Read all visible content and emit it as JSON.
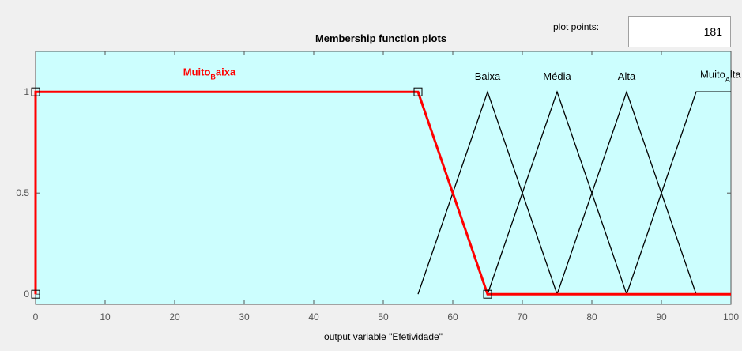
{
  "plot_points": {
    "label": "plot points:",
    "value": "181"
  },
  "colors": {
    "plot_background": "#ccfefe",
    "window_background": "#f0f0f0",
    "selected_mf": "#ff0000",
    "mf": "#000000"
  },
  "chart_data": {
    "type": "line",
    "title": "Membership function plots",
    "xlabel": "output variable \"Efetividade\"",
    "ylabel": "",
    "xlim": [
      0,
      100
    ],
    "ylim": [
      -0.05,
      1.2
    ],
    "xticks": [
      "0",
      "10",
      "20",
      "30",
      "40",
      "50",
      "60",
      "70",
      "80",
      "90",
      "100"
    ],
    "yticks": [
      {
        "value": 0,
        "label": "0"
      },
      {
        "value": 0.5,
        "label": "0.5"
      },
      {
        "value": 1,
        "label": "1"
      }
    ],
    "grid": false,
    "selected_series": "Muito_Baixa",
    "series": [
      {
        "name": "Muito_Baixa",
        "label_main": "Muito",
        "label_sub": "B",
        "label_tail": "aixa",
        "label_x": 25,
        "label_y": 1.08,
        "selected": true,
        "points": [
          [
            0,
            0
          ],
          [
            0,
            1
          ],
          [
            55,
            1
          ],
          [
            65,
            0
          ],
          [
            100,
            0
          ]
        ]
      },
      {
        "name": "Baixa",
        "label_main": "Baixa",
        "label_x": 65,
        "label_y": 1.06,
        "selected": false,
        "points": [
          [
            55,
            0
          ],
          [
            65,
            1
          ],
          [
            75,
            0
          ]
        ]
      },
      {
        "name": "Média",
        "label_main": "Média",
        "label_x": 75,
        "label_y": 1.06,
        "selected": false,
        "points": [
          [
            65,
            0
          ],
          [
            75,
            1
          ],
          [
            85,
            0
          ]
        ]
      },
      {
        "name": "Alta",
        "label_main": "Alta",
        "label_x": 85,
        "label_y": 1.06,
        "selected": false,
        "points": [
          [
            75,
            0
          ],
          [
            85,
            1
          ],
          [
            95,
            0
          ]
        ]
      },
      {
        "name": "Muito_Alta",
        "label_main": "Muito",
        "label_sub": "A",
        "label_tail": "lta",
        "label_x": 98.5,
        "label_y": 1.07,
        "selected": false,
        "points": [
          [
            85,
            0
          ],
          [
            95,
            1
          ],
          [
            100,
            1
          ]
        ]
      }
    ]
  }
}
